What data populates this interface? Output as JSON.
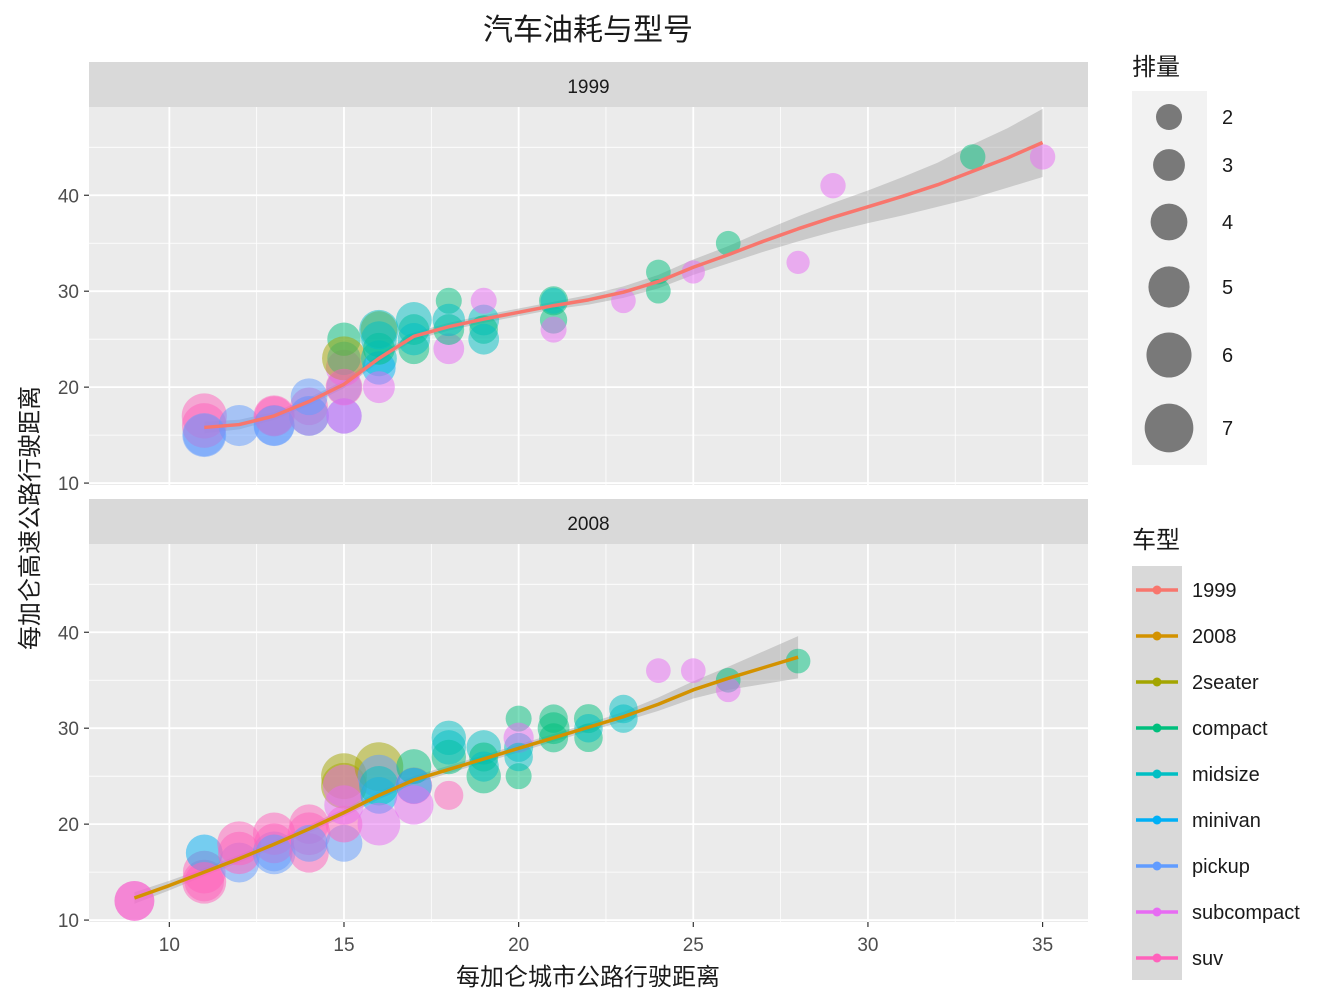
{
  "chart_data": {
    "type": "scatter",
    "title": "汽车油耗与型号",
    "xlabel": "每加仑城市公路行驶距离",
    "ylabel": "每加仑高速公路行驶距离",
    "xlim": [
      7.7,
      36.3
    ],
    "ylim": [
      9.8,
      49.2
    ],
    "x_ticks": [
      10,
      15,
      20,
      25,
      30,
      35
    ],
    "y_ticks": [
      10,
      20,
      30,
      40
    ],
    "grid": true,
    "facets": [
      "1999",
      "2008"
    ],
    "class_colors": {
      "2seater": "#A3A500",
      "compact": "#00BF7D",
      "midsize": "#00BFC4",
      "minivan": "#00B0F6",
      "pickup": "#619CFF",
      "subcompact": "#E76BF3",
      "suv": "#FF62BC"
    },
    "smooth_colors": {
      "1999": "#F8766D",
      "2008": "#D39200"
    },
    "size_legend": {
      "title": "排量",
      "values": [
        2,
        3,
        4,
        5,
        6,
        7
      ],
      "labels": [
        "2",
        "3",
        "4",
        "5",
        "6",
        "7"
      ]
    },
    "color_legend": {
      "title": "车型",
      "items": [
        "1999",
        "2008",
        "2seater",
        "compact",
        "midsize",
        "minivan",
        "pickup",
        "subcompact",
        "suv"
      ],
      "colors": [
        "#F8766D",
        "#D39200",
        "#A3A500",
        "#00BF7D",
        "#00BFC4",
        "#00B0F6",
        "#619CFF",
        "#E76BF3",
        "#FF62BC"
      ]
    },
    "panels": [
      {
        "facet": "1999",
        "points": [
          [
            11,
            15,
            5.3,
            "pickup"
          ],
          [
            11,
            16,
            5.9,
            "suv"
          ],
          [
            11,
            17,
            6.0,
            "suv"
          ],
          [
            11,
            15,
            5.7,
            "pickup"
          ],
          [
            12,
            16,
            5.0,
            "pickup"
          ],
          [
            13,
            16,
            5.0,
            "pickup"
          ],
          [
            13,
            17,
            5.0,
            "suv"
          ],
          [
            13,
            17,
            4.6,
            "suv"
          ],
          [
            13,
            16,
            4.8,
            "pickup"
          ],
          [
            14,
            17,
            4.6,
            "suv"
          ],
          [
            14,
            18,
            4.2,
            "suv"
          ],
          [
            14,
            17,
            4.7,
            "pickup"
          ],
          [
            14,
            19,
            4.0,
            "pickup"
          ],
          [
            15,
            17,
            3.7,
            "pickup"
          ],
          [
            15,
            20,
            3.7,
            "pickup"
          ],
          [
            15,
            22,
            3.9,
            "subcompact"
          ],
          [
            15,
            23,
            3.3,
            "minivan"
          ],
          [
            15,
            25,
            3.3,
            "compact"
          ],
          [
            15,
            23,
            5.7,
            "2seater"
          ],
          [
            15,
            20,
            4.0,
            "suv"
          ],
          [
            15,
            17,
            3.7,
            "subcompact"
          ],
          [
            16,
            26,
            4.0,
            "2seater"
          ],
          [
            16,
            25,
            3.8,
            "midsize"
          ],
          [
            16,
            23,
            3.8,
            "midsize"
          ],
          [
            16,
            22,
            3.3,
            "minivan"
          ],
          [
            16,
            20,
            3.0,
            "subcompact"
          ],
          [
            16,
            24,
            3.0,
            "compact"
          ],
          [
            16,
            26,
            4.6,
            "midsize"
          ],
          [
            17,
            24,
            2.8,
            "compact"
          ],
          [
            17,
            26,
            2.8,
            "compact"
          ],
          [
            17,
            27,
            3.8,
            "midsize"
          ],
          [
            17,
            25,
            3.1,
            "midsize"
          ],
          [
            18,
            24,
            2.8,
            "subcompact"
          ],
          [
            18,
            26,
            2.8,
            "compact"
          ],
          [
            18,
            29,
            2.0,
            "compact"
          ],
          [
            18,
            27,
            3.1,
            "midsize"
          ],
          [
            19,
            27,
            2.8,
            "midsize"
          ],
          [
            19,
            26,
            2.4,
            "compact"
          ],
          [
            19,
            25,
            2.8,
            "midsize"
          ],
          [
            19,
            29,
            2.0,
            "subcompact"
          ],
          [
            21,
            29,
            2.5,
            "compact"
          ],
          [
            21,
            27,
            2.2,
            "compact"
          ],
          [
            21,
            26,
            2.0,
            "subcompact"
          ],
          [
            21,
            29,
            2.0,
            "midsize"
          ],
          [
            23,
            29,
            1.8,
            "subcompact"
          ],
          [
            24,
            32,
            1.8,
            "compact"
          ],
          [
            24,
            30,
            1.8,
            "compact"
          ],
          [
            25,
            32,
            1.6,
            "subcompact"
          ],
          [
            26,
            35,
            1.8,
            "compact"
          ],
          [
            28,
            33,
            1.6,
            "subcompact"
          ],
          [
            29,
            41,
            1.9,
            "subcompact"
          ],
          [
            33,
            44,
            1.9,
            "compact"
          ],
          [
            35,
            44,
            1.9,
            "subcompact"
          ]
        ],
        "smooth": {
          "x": [
            11,
            12,
            13,
            14,
            15,
            16,
            17,
            18,
            19,
            20,
            21,
            22,
            23,
            24,
            25,
            26,
            27,
            28,
            29,
            30,
            31,
            32,
            33,
            34,
            35
          ],
          "y": [
            15.8,
            16.1,
            17.0,
            18.5,
            20.3,
            23.0,
            25.3,
            26.3,
            27.1,
            27.8,
            28.5,
            29.1,
            29.9,
            31.0,
            32.5,
            33.8,
            35.2,
            36.5,
            37.7,
            38.8,
            39.9,
            41.1,
            42.5,
            43.9,
            45.5
          ],
          "lower": [
            15.2,
            15.6,
            16.6,
            18.1,
            19.9,
            22.6,
            24.9,
            25.9,
            26.7,
            27.4,
            28.1,
            28.6,
            29.3,
            30.3,
            31.7,
            32.9,
            34.1,
            35.2,
            36.2,
            37.1,
            37.9,
            38.8,
            39.7,
            40.8,
            41.9
          ],
          "upper": [
            16.4,
            16.6,
            17.4,
            18.9,
            20.7,
            23.4,
            25.7,
            26.7,
            27.5,
            28.2,
            28.9,
            29.6,
            30.5,
            31.7,
            33.3,
            34.7,
            36.3,
            37.8,
            39.2,
            40.5,
            41.9,
            43.4,
            45.3,
            47.0,
            49.0
          ]
        }
      },
      {
        "facet": "2008",
        "points": [
          [
            9,
            12,
            4.7,
            "subcompact"
          ],
          [
            9,
            12,
            4.7,
            "suv"
          ],
          [
            11,
            14,
            5.7,
            "suv"
          ],
          [
            11,
            15,
            5.4,
            "suv"
          ],
          [
            11,
            17,
            4.0,
            "minivan"
          ],
          [
            11,
            14,
            4.6,
            "suv"
          ],
          [
            12,
            16,
            4.7,
            "pickup"
          ],
          [
            12,
            17,
            5.3,
            "suv"
          ],
          [
            12,
            18,
            5.7,
            "suv"
          ],
          [
            13,
            17,
            5.4,
            "pickup"
          ],
          [
            13,
            18,
            4.7,
            "suv"
          ],
          [
            13,
            19,
            5.3,
            "suv"
          ],
          [
            13,
            17,
            4.0,
            "pickup"
          ],
          [
            14,
            17,
            4.6,
            "suv"
          ],
          [
            14,
            19,
            5.4,
            "suv"
          ],
          [
            14,
            20,
            4.6,
            "suv"
          ],
          [
            14,
            18,
            4.0,
            "pickup"
          ],
          [
            15,
            18,
            4.0,
            "pickup"
          ],
          [
            15,
            24,
            6.2,
            "2seater"
          ],
          [
            15,
            25,
            6.2,
            "2seater"
          ],
          [
            15,
            24,
            5.3,
            "subcompact"
          ],
          [
            15,
            20,
            4.0,
            "suv"
          ],
          [
            15,
            22,
            4.6,
            "subcompact"
          ],
          [
            16,
            26,
            7.0,
            "2seater"
          ],
          [
            16,
            23,
            4.0,
            "minivan"
          ],
          [
            16,
            25,
            5.4,
            "pickup"
          ],
          [
            16,
            24,
            4.6,
            "midsize"
          ],
          [
            16,
            20,
            5.4,
            "subcompact"
          ],
          [
            17,
            24,
            4.0,
            "suv"
          ],
          [
            17,
            26,
            3.6,
            "compact"
          ],
          [
            17,
            24,
            3.8,
            "minivan"
          ],
          [
            17,
            22,
            4.6,
            "subcompact"
          ],
          [
            18,
            29,
            3.5,
            "midsize"
          ],
          [
            18,
            27,
            3.5,
            "compact"
          ],
          [
            18,
            28,
            3.5,
            "midsize"
          ],
          [
            18,
            23,
            2.5,
            "suv"
          ],
          [
            19,
            28,
            3.5,
            "midsize"
          ],
          [
            19,
            25,
            3.5,
            "compact"
          ],
          [
            19,
            27,
            2.5,
            "compact"
          ],
          [
            19,
            26,
            2.7,
            "midsize"
          ],
          [
            20,
            31,
            2.0,
            "compact"
          ],
          [
            20,
            28,
            2.5,
            "midsize"
          ],
          [
            20,
            29,
            2.7,
            "subcompact"
          ],
          [
            20,
            25,
            2.0,
            "compact"
          ],
          [
            20,
            27,
            2.4,
            "midsize"
          ],
          [
            21,
            31,
            2.4,
            "compact"
          ],
          [
            21,
            30,
            3.0,
            "compact"
          ],
          [
            21,
            29,
            2.5,
            "compact"
          ],
          [
            22,
            31,
            2.5,
            "compact"
          ],
          [
            22,
            29,
            2.4,
            "compact"
          ],
          [
            22,
            30,
            2.4,
            "midsize"
          ],
          [
            23,
            32,
            2.4,
            "midsize"
          ],
          [
            23,
            31,
            2.4,
            "midsize"
          ],
          [
            24,
            36,
            1.8,
            "subcompact"
          ],
          [
            25,
            36,
            1.8,
            "subcompact"
          ],
          [
            26,
            35,
            1.8,
            "compact"
          ],
          [
            26,
            34,
            1.8,
            "subcompact"
          ],
          [
            28,
            37,
            1.8,
            "compact"
          ]
        ],
        "smooth": {
          "x": [
            9,
            10,
            11,
            12,
            13,
            14,
            15,
            16,
            17,
            18,
            19,
            20,
            21,
            22,
            23,
            24,
            25,
            26,
            27,
            28
          ],
          "y": [
            12.3,
            13.6,
            15.0,
            16.4,
            17.9,
            19.5,
            21.2,
            23.0,
            24.6,
            25.7,
            26.8,
            27.9,
            29.0,
            30.1,
            31.2,
            32.5,
            34.0,
            35.2,
            36.3,
            37.4
          ],
          "lower": [
            11.7,
            13.1,
            14.6,
            16.0,
            17.5,
            19.1,
            20.8,
            22.6,
            24.2,
            25.3,
            26.4,
            27.5,
            28.6,
            29.7,
            30.7,
            31.8,
            33.1,
            34.0,
            34.6,
            35.2
          ],
          "upper": [
            12.9,
            14.1,
            15.4,
            16.8,
            18.3,
            19.9,
            21.6,
            23.4,
            25.0,
            26.1,
            27.2,
            28.3,
            29.4,
            30.5,
            31.7,
            33.2,
            34.9,
            36.4,
            38.0,
            39.6
          ]
        }
      }
    ]
  }
}
